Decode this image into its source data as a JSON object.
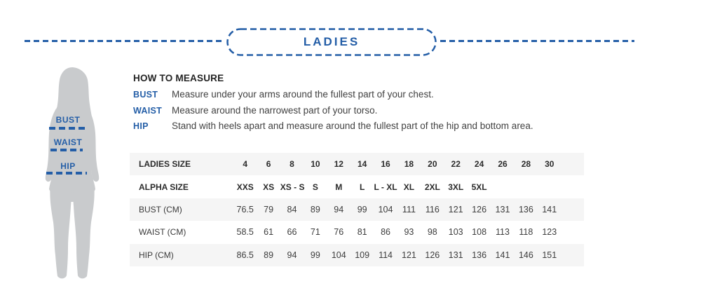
{
  "header": {
    "title": "LADIES"
  },
  "how_to_measure": {
    "title": "HOW TO MEASURE",
    "items": [
      {
        "label": "BUST",
        "text": "Measure under your arms around the fullest part of your chest."
      },
      {
        "label": "WAIST",
        "text": "Measure around the narrowest part of your torso."
      },
      {
        "label": "HIP",
        "text": "Stand with heels apart and measure around the fullest part of the hip and bottom area."
      }
    ]
  },
  "figure": {
    "labels": [
      "BUST",
      "WAIST",
      "HIP"
    ]
  },
  "size_table": {
    "rows": [
      {
        "label": "LADIES SIZE",
        "bold": true,
        "values": [
          "4",
          "6",
          "8",
          "10",
          "12",
          "14",
          "16",
          "18",
          "20",
          "22",
          "24",
          "26",
          "28",
          "30"
        ]
      },
      {
        "label": "ALPHA SIZE",
        "bold": true,
        "values": [
          "XXS",
          "XS",
          "XS - S",
          "S",
          "M",
          "L",
          "L - XL",
          "XL",
          "2XL",
          "3XL",
          "5XL",
          "",
          "",
          ""
        ]
      },
      {
        "label": "BUST (CM)",
        "bold": false,
        "values": [
          "76.5",
          "79",
          "84",
          "89",
          "94",
          "99",
          "104",
          "111",
          "116",
          "121",
          "126",
          "131",
          "136",
          "141"
        ]
      },
      {
        "label": "WAIST (CM)",
        "bold": false,
        "values": [
          "58.5",
          "61",
          "66",
          "71",
          "76",
          "81",
          "86",
          "93",
          "98",
          "103",
          "108",
          "113",
          "118",
          "123"
        ]
      },
      {
        "label": "HIP (CM)",
        "bold": false,
        "values": [
          "86.5",
          "89",
          "94",
          "99",
          "104",
          "109",
          "114",
          "121",
          "126",
          "131",
          "136",
          "141",
          "146",
          "151"
        ]
      }
    ]
  },
  "colors": {
    "accent_blue": "#245ea7",
    "row_alt_bg": "#f5f5f5",
    "silhouette_gray": "#c9cbcd"
  }
}
